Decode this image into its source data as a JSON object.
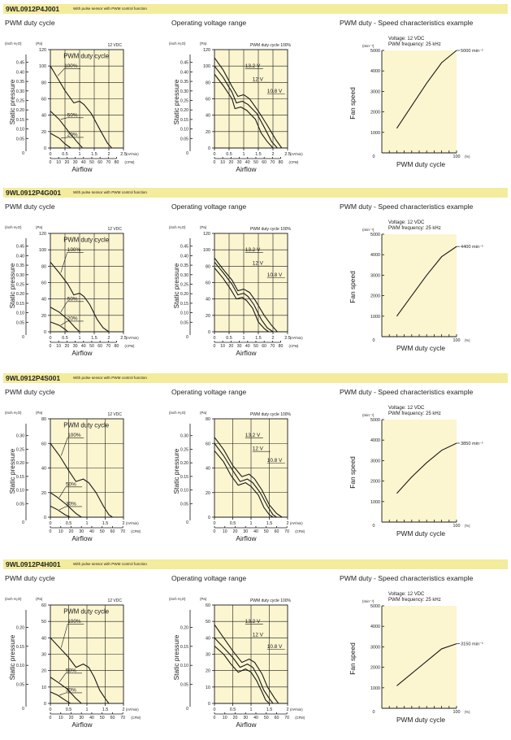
{
  "common": {
    "panel_titles": [
      "PWM duty cycle",
      "Operating voltage range",
      "PWM duty - Speed characteristics example"
    ],
    "subtitle": "With pulse sensor with PWM control function",
    "ylabel_pressure": "Static pressure",
    "xlabel_airflow": "Airflow",
    "unit_inch": "(inch H₂O)",
    "unit_pa": "(Pa)",
    "unit_m3": "(m³/min)",
    "unit_cfm": "(CFM)",
    "pwm_label": "PWM duty cycle",
    "vdc_label": "12 VDC",
    "duty100_label": "PWM duty cycle 100%",
    "speed_ylabel": "Fan speed",
    "speed_xlabel": "PWM duty cycle",
    "speed_unit": "(min⁻¹)",
    "pct_unit": "(%)",
    "voltage_note": "Voltage: 12 VDC",
    "freq_note": "PWM frequency: 25 kHz",
    "colors": {
      "header": "#f3ec9c",
      "plot_bg": "#fbf5d0",
      "ink": "#1a1a1a"
    }
  },
  "models": [
    {
      "name": "9WL0912P4J001",
      "pa_max": 120,
      "pa_step": 20,
      "inch_ticks": [
        "0.45",
        "0.40",
        "0.35",
        "0.30",
        "0.25",
        "0.20",
        "0.15",
        "0.10",
        "0.05"
      ],
      "m3_ticks": [
        "0",
        "0.5",
        "1",
        "1.5",
        "2",
        "2.5"
      ],
      "cfm_ticks": [
        "0",
        "10",
        "20",
        "30",
        "40",
        "50",
        "60",
        "70",
        "80"
      ],
      "duty_labels": [
        "100%",
        "50%",
        "20%"
      ],
      "volt_labels": [
        "13.2 V",
        "12 V",
        "10.8 V"
      ],
      "max_speed_label": "5000 min⁻¹"
    },
    {
      "name": "9WL0912P4G001",
      "pa_max": 120,
      "pa_step": 20,
      "inch_ticks": [
        "0.45",
        "0.40",
        "0.35",
        "0.30",
        "0.25",
        "0.20",
        "0.15",
        "0.10",
        "0.05"
      ],
      "m3_ticks": [
        "0",
        "0.5",
        "1",
        "1.5",
        "2",
        "2.5"
      ],
      "cfm_ticks": [
        "0",
        "10",
        "20",
        "30",
        "40",
        "50",
        "60",
        "70",
        "80"
      ],
      "duty_labels": [
        "100%",
        "50%",
        "20%"
      ],
      "volt_labels": [
        "13.2 V",
        "12 V",
        "10.8 V"
      ],
      "max_speed_label": "4400 min⁻¹"
    },
    {
      "name": "9WL0912P4S001",
      "pa_max": 80,
      "pa_step": 20,
      "inch_ticks": [
        "0.30",
        "0.25",
        "0.20",
        "0.15",
        "0.10",
        "0.05"
      ],
      "m3_ticks": [
        "0",
        "0.5",
        "1",
        "1.5",
        "2"
      ],
      "cfm_ticks": [
        "0",
        "10",
        "20",
        "30",
        "40",
        "50",
        "60",
        "70"
      ],
      "duty_labels": [
        "100%",
        "50%",
        "30%"
      ],
      "volt_labels": [
        "13.2 V",
        "12 V",
        "10.8 V"
      ],
      "max_speed_label": "3850 min⁻¹"
    },
    {
      "name": "9WL0912P4H001",
      "pa_max": 60,
      "pa_step": 10,
      "inch_ticks": [
        "0.20",
        "0.15",
        "0.10",
        "0.05"
      ],
      "m3_ticks": [
        "0",
        "0.5",
        "1",
        "1.5",
        "2"
      ],
      "cfm_ticks": [
        "0",
        "10",
        "20",
        "30",
        "40",
        "50",
        "60",
        "70"
      ],
      "duty_labels": [
        "100%",
        "50%",
        "30%"
      ],
      "volt_labels": [
        "13.2 V",
        "12 V",
        "10.8 V"
      ],
      "max_speed_label": "3150 min⁻¹"
    }
  ],
  "speed_axis": {
    "y_ticks": [
      1000,
      2000,
      3000,
      4000,
      5000
    ],
    "ylim": [
      0,
      5000
    ],
    "x_ticks_labels": [
      "0",
      "100"
    ],
    "xlim": [
      0,
      100
    ]
  },
  "chart_data": [
    {
      "type": "line",
      "title": "PWM duty cycle",
      "model": "9WL0912P4J001",
      "xlabel": "Airflow",
      "ylabel": "Static pressure",
      "xlim": [
        0,
        2.5
      ],
      "ylim": [
        0,
        120
      ],
      "series": [
        {
          "name": "100%",
          "x": [
            0,
            0.2,
            0.5,
            0.8,
            1.0,
            1.15,
            1.4,
            1.7,
            1.95,
            2.1
          ],
          "y": [
            100,
            88,
            70,
            55,
            57,
            53,
            42,
            22,
            6,
            0
          ]
        },
        {
          "name": "50%",
          "x": [
            0,
            0.3,
            0.6,
            0.9,
            1.1
          ],
          "y": [
            45,
            35,
            21,
            8,
            0
          ]
        },
        {
          "name": "20%",
          "x": [
            0,
            0.3,
            0.5,
            0.7
          ],
          "y": [
            18,
            12,
            5,
            0
          ]
        }
      ]
    },
    {
      "type": "line",
      "title": "Operating voltage range",
      "model": "9WL0912P4J001",
      "xlabel": "Airflow",
      "ylabel": "Static pressure",
      "xlim": [
        0,
        2.5
      ],
      "ylim": [
        0,
        120
      ],
      "series": [
        {
          "name": "13.2 V",
          "x": [
            0,
            0.3,
            0.6,
            0.8,
            1.0,
            1.2,
            1.5,
            1.8,
            2.1,
            2.3
          ],
          "y": [
            110,
            95,
            75,
            63,
            65,
            60,
            45,
            28,
            10,
            0
          ]
        },
        {
          "name": "12 V",
          "x": [
            0,
            0.3,
            0.6,
            0.75,
            0.95,
            1.15,
            1.45,
            1.75,
            1.95,
            2.15
          ],
          "y": [
            100,
            86,
            68,
            55,
            57,
            53,
            42,
            22,
            8,
            0
          ]
        },
        {
          "name": "10.8 V",
          "x": [
            0,
            0.3,
            0.6,
            0.7,
            0.9,
            1.1,
            1.4,
            1.6,
            1.8,
            2.0
          ],
          "y": [
            90,
            76,
            60,
            48,
            50,
            46,
            35,
            18,
            8,
            0
          ]
        }
      ]
    },
    {
      "type": "line",
      "title": "PWM duty - Speed characteristics example",
      "model": "9WL0912P4J001",
      "xlabel": "PWM duty cycle",
      "ylabel": "Fan speed",
      "xlim": [
        0,
        100
      ],
      "ylim": [
        0,
        5000
      ],
      "series": [
        {
          "name": "speed",
          "x": [
            20,
            40,
            60,
            80,
            100
          ],
          "y": [
            1200,
            2300,
            3400,
            4400,
            5000
          ]
        }
      ]
    },
    {
      "type": "line",
      "title": "PWM duty cycle",
      "model": "9WL0912P4G001",
      "xlabel": "Airflow",
      "ylabel": "Static pressure",
      "xlim": [
        0,
        2.5
      ],
      "ylim": [
        0,
        120
      ],
      "series": [
        {
          "name": "100%",
          "x": [
            0,
            0.3,
            0.6,
            0.8,
            1.0,
            1.15,
            1.35,
            1.6,
            1.8,
            2.0
          ],
          "y": [
            85,
            72,
            58,
            45,
            47,
            43,
            33,
            15,
            5,
            0
          ]
        },
        {
          "name": "50%",
          "x": [
            0,
            0.3,
            0.6,
            0.85,
            1.0
          ],
          "y": [
            30,
            24,
            15,
            5,
            0
          ]
        },
        {
          "name": "20%",
          "x": [
            0,
            0.3,
            0.5,
            0.6
          ],
          "y": [
            12,
            8,
            3,
            0
          ]
        }
      ]
    },
    {
      "type": "line",
      "title": "Operating voltage range",
      "model": "9WL0912P4G001",
      "xlabel": "Airflow",
      "ylabel": "Static pressure",
      "xlim": [
        0,
        2.5
      ],
      "ylim": [
        0,
        120
      ],
      "series": [
        {
          "name": "13.2 V",
          "x": [
            0,
            0.3,
            0.6,
            0.8,
            1.0,
            1.2,
            1.4,
            1.7,
            1.95,
            2.15
          ],
          "y": [
            90,
            76,
            63,
            50,
            52,
            48,
            38,
            20,
            8,
            0
          ]
        },
        {
          "name": "12 V",
          "x": [
            0,
            0.3,
            0.6,
            0.8,
            1.0,
            1.15,
            1.35,
            1.6,
            1.8,
            2.0
          ],
          "y": [
            85,
            72,
            58,
            45,
            47,
            43,
            33,
            15,
            5,
            0
          ]
        },
        {
          "name": "10.8 V",
          "x": [
            0,
            0.3,
            0.55,
            0.75,
            0.95,
            1.1,
            1.3,
            1.5,
            1.7,
            1.85
          ],
          "y": [
            78,
            65,
            52,
            40,
            42,
            38,
            29,
            12,
            4,
            0
          ]
        }
      ]
    },
    {
      "type": "line",
      "title": "PWM duty - Speed characteristics example",
      "model": "9WL0912P4G001",
      "xlabel": "PWM duty cycle",
      "ylabel": "Fan speed",
      "xlim": [
        0,
        100
      ],
      "ylim": [
        0,
        5000
      ],
      "series": [
        {
          "name": "speed",
          "x": [
            20,
            40,
            60,
            80,
            100
          ],
          "y": [
            1000,
            2000,
            3000,
            3900,
            4400
          ]
        }
      ]
    },
    {
      "type": "line",
      "title": "PWM duty cycle",
      "model": "9WL0912P4S001",
      "xlabel": "Airflow",
      "ylabel": "Static pressure",
      "xlim": [
        0,
        2.0
      ],
      "ylim": [
        0,
        80
      ],
      "series": [
        {
          "name": "100%",
          "x": [
            0,
            0.25,
            0.5,
            0.7,
            0.9,
            1.05,
            1.25,
            1.45,
            1.6,
            1.7
          ],
          "y": [
            60,
            50,
            38,
            29,
            31,
            28,
            20,
            9,
            2,
            0
          ]
        },
        {
          "name": "50%",
          "x": [
            0,
            0.2,
            0.45,
            0.7,
            0.85
          ],
          "y": [
            20,
            16,
            10,
            3,
            0
          ]
        },
        {
          "name": "30%",
          "x": [
            0,
            0.2,
            0.4,
            0.55
          ],
          "y": [
            9,
            6,
            2,
            0
          ]
        }
      ]
    },
    {
      "type": "line",
      "title": "Operating voltage range",
      "model": "9WL0912P4S001",
      "xlabel": "Airflow",
      "ylabel": "Static pressure",
      "xlim": [
        0,
        2.0
      ],
      "ylim": [
        0,
        80
      ],
      "series": [
        {
          "name": "13.2 V",
          "x": [
            0,
            0.25,
            0.5,
            0.75,
            0.95,
            1.1,
            1.3,
            1.5,
            1.7,
            1.85
          ],
          "y": [
            65,
            55,
            42,
            33,
            35,
            31,
            22,
            10,
            3,
            0
          ]
        },
        {
          "name": "12 V",
          "x": [
            0,
            0.25,
            0.5,
            0.7,
            0.9,
            1.05,
            1.25,
            1.45,
            1.6,
            1.7
          ],
          "y": [
            60,
            50,
            38,
            29,
            31,
            28,
            20,
            9,
            2,
            0
          ]
        },
        {
          "name": "10.8 V",
          "x": [
            0,
            0.25,
            0.45,
            0.65,
            0.85,
            1.0,
            1.2,
            1.35,
            1.5,
            1.6
          ],
          "y": [
            54,
            45,
            34,
            26,
            28,
            25,
            18,
            8,
            2,
            0
          ]
        }
      ]
    },
    {
      "type": "line",
      "title": "PWM duty - Speed characteristics example",
      "model": "9WL0912P4S001",
      "xlabel": "PWM duty cycle",
      "ylabel": "Fan speed",
      "xlim": [
        0,
        100
      ],
      "ylim": [
        0,
        5000
      ],
      "series": [
        {
          "name": "speed",
          "x": [
            20,
            40,
            60,
            80,
            100
          ],
          "y": [
            1400,
            2200,
            2900,
            3500,
            3850
          ]
        }
      ]
    },
    {
      "type": "line",
      "title": "PWM duty cycle",
      "model": "9WL0912P4H001",
      "xlabel": "Airflow",
      "ylabel": "Static pressure",
      "xlim": [
        0,
        2.0
      ],
      "ylim": [
        0,
        60
      ],
      "series": [
        {
          "name": "100%",
          "x": [
            0,
            0.25,
            0.5,
            0.7,
            0.9,
            1.05,
            1.2,
            1.35,
            1.5,
            1.6
          ],
          "y": [
            40,
            34,
            28,
            22,
            24,
            22,
            16,
            8,
            3,
            0
          ]
        },
        {
          "name": "50%",
          "x": [
            0,
            0.2,
            0.45,
            0.7,
            0.85
          ],
          "y": [
            16,
            13,
            9,
            3,
            0
          ]
        },
        {
          "name": "30%",
          "x": [
            0,
            0.2,
            0.4,
            0.55
          ],
          "y": [
            7,
            5,
            2,
            0
          ]
        }
      ]
    },
    {
      "type": "line",
      "title": "Operating voltage range",
      "model": "9WL0912P4H001",
      "xlabel": "Airflow",
      "ylabel": "Static pressure",
      "xlim": [
        0,
        2.0
      ],
      "ylim": [
        0,
        60
      ],
      "series": [
        {
          "name": "13.2 V",
          "x": [
            0,
            0.25,
            0.5,
            0.75,
            0.95,
            1.1,
            1.3,
            1.45,
            1.65,
            1.75
          ],
          "y": [
            48,
            40,
            32,
            25,
            27,
            25,
            18,
            10,
            3,
            0
          ]
        },
        {
          "name": "12 V",
          "x": [
            0,
            0.25,
            0.5,
            0.7,
            0.9,
            1.05,
            1.2,
            1.35,
            1.5,
            1.6
          ],
          "y": [
            40,
            34,
            28,
            22,
            24,
            22,
            16,
            8,
            3,
            0
          ]
        },
        {
          "name": "10.8 V",
          "x": [
            0,
            0.25,
            0.45,
            0.65,
            0.85,
            1.0,
            1.15,
            1.3,
            1.4,
            1.5
          ],
          "y": [
            35,
            30,
            24,
            19,
            21,
            19,
            14,
            7,
            2,
            0
          ]
        }
      ]
    },
    {
      "type": "line",
      "title": "PWM duty - Speed characteristics example",
      "model": "9WL0912P4H001",
      "xlabel": "PWM duty cycle",
      "ylabel": "Fan speed",
      "xlim": [
        0,
        100
      ],
      "ylim": [
        0,
        5000
      ],
      "series": [
        {
          "name": "speed",
          "x": [
            20,
            40,
            60,
            80,
            100
          ],
          "y": [
            1100,
            1700,
            2300,
            2900,
            3150
          ]
        }
      ]
    }
  ]
}
